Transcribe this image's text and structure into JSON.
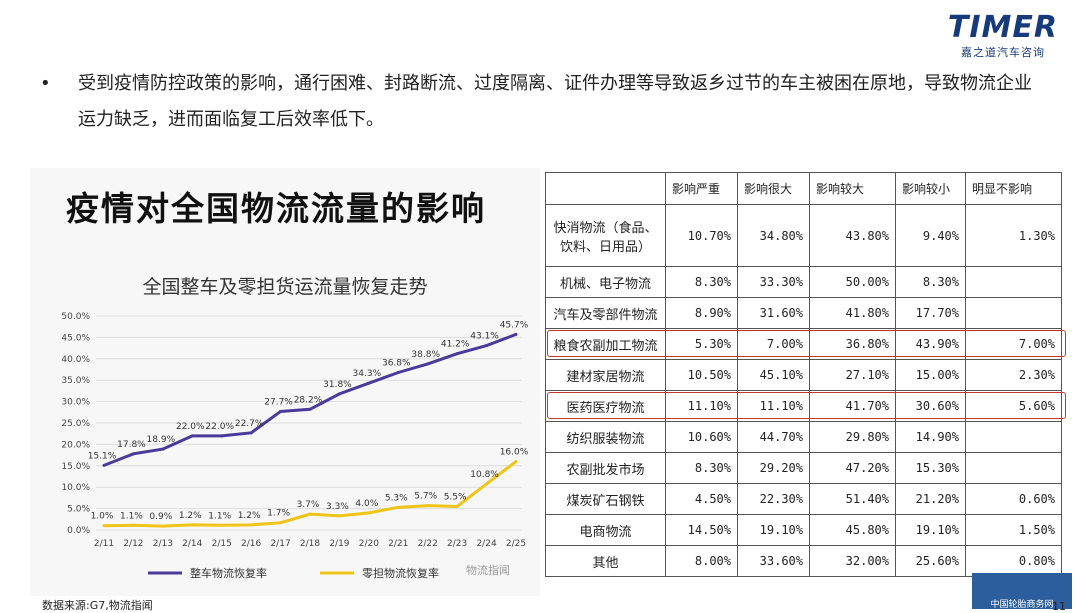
{
  "logo": {
    "main": "TIMER",
    "sub": "嘉之道汽车咨询"
  },
  "bullet": {
    "dot": "•",
    "text": "受到疫情防控政策的影响，通行困难、封路断流、过度隔离、证件办理等导致返乡过节的车主被困在原地，导致物流企业运力缺乏，进而面临复工后效率低下。"
  },
  "chart_heading": "疫情对全国物流流量的影响",
  "chart_data": {
    "type": "line",
    "title": "全国整车及零担货运流量恢复走势",
    "categories": [
      "2/11",
      "2/12",
      "2/13",
      "2/14",
      "2/15",
      "2/16",
      "2/17",
      "2/18",
      "2/19",
      "2/20",
      "2/21",
      "2/22",
      "2/23",
      "2/24",
      "2/25"
    ],
    "y_ticks": [
      "0.0%",
      "5.0%",
      "10.0%",
      "15.0%",
      "20.0%",
      "25.0%",
      "30.0%",
      "35.0%",
      "40.0%",
      "45.0%",
      "50.0%"
    ],
    "ylim": [
      0,
      50
    ],
    "series": [
      {
        "name": "整车物流恢复率",
        "color": "#4b3a9a",
        "values": [
          15.1,
          17.8,
          18.9,
          22.0,
          22.0,
          22.7,
          27.7,
          28.2,
          31.8,
          34.3,
          36.8,
          38.8,
          41.2,
          43.1,
          45.7
        ],
        "labels": [
          "15.1%",
          "17.8%",
          "18.9%",
          "22.0%",
          "22.0%",
          "22.7%",
          "27.7%",
          "28.2%",
          "31.8%",
          "34.3%",
          "36.8%",
          "38.8%",
          "41.2%",
          "43.1%",
          "45.7%"
        ]
      },
      {
        "name": "零担物流恢复率",
        "color": "#f0c419",
        "values": [
          1.0,
          1.1,
          0.9,
          1.2,
          1.1,
          1.2,
          1.7,
          3.7,
          3.3,
          4.0,
          5.3,
          5.7,
          5.5,
          10.8,
          16.0
        ],
        "labels": [
          "1.0%",
          "1.1%",
          "0.9%",
          "1.2%",
          "1.1%",
          "1.2%",
          "1.7%",
          "3.7%",
          "3.3%",
          "4.0%",
          "5.3%",
          "5.7%",
          "5.5%",
          "10.8%",
          "16.0%"
        ]
      }
    ]
  },
  "source": "数据来源:G7,物流指闻",
  "wechat": "物流指闻",
  "table": {
    "headers": [
      "",
      "影响严重",
      "影响很大",
      "影响较大",
      "影响较小",
      "明显不影响"
    ],
    "rows": [
      {
        "cat": "快消物流（食品、饮料、日用品）",
        "cells": [
          "10.70%",
          "34.80%",
          "43.80%",
          "9.40%",
          "1.30%"
        ]
      },
      {
        "cat": "机械、电子物流",
        "cells": [
          "8.30%",
          "33.30%",
          "50.00%",
          "8.30%",
          ""
        ]
      },
      {
        "cat": "汽车及零部件物流",
        "cells": [
          "8.90%",
          "31.60%",
          "41.80%",
          "17.70%",
          ""
        ]
      },
      {
        "cat": "粮食农副加工物流",
        "cells": [
          "5.30%",
          "7.00%",
          "36.80%",
          "43.90%",
          "7.00%"
        ]
      },
      {
        "cat": "建材家居物流",
        "cells": [
          "10.50%",
          "45.10%",
          "27.10%",
          "15.00%",
          "2.30%"
        ]
      },
      {
        "cat": "医药医疗物流",
        "cells": [
          "11.10%",
          "11.10%",
          "41.70%",
          "30.60%",
          "5.60%"
        ]
      },
      {
        "cat": "纺织服装物流",
        "cells": [
          "10.60%",
          "44.70%",
          "29.80%",
          "14.90%",
          ""
        ]
      },
      {
        "cat": "农副批发市场",
        "cells": [
          "8.30%",
          "29.20%",
          "47.20%",
          "15.30%",
          ""
        ]
      },
      {
        "cat": "煤炭矿石钢铁",
        "cells": [
          "4.50%",
          "22.30%",
          "51.40%",
          "21.20%",
          "0.60%"
        ]
      },
      {
        "cat": "电商物流",
        "cells": [
          "14.50%",
          "19.10%",
          "45.80%",
          "19.10%",
          "1.50%"
        ]
      },
      {
        "cat": "其他",
        "cells": [
          "8.00%",
          "33.60%",
          "32.00%",
          "25.60%",
          "0.80%"
        ]
      }
    ]
  },
  "highlight_color": "#c0392b",
  "footer": {
    "watermark": "中国轮胎商务网",
    "page": "11"
  }
}
